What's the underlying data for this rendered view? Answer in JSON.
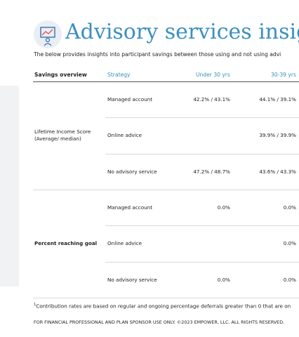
{
  "header": {
    "title": "Advisory services insigh",
    "subtitle": "The below provides insights into participant savings between those using and not using advi"
  },
  "table": {
    "columns": [
      "Savings overview",
      "Strategy",
      "Under 30 yrs",
      "30-39 yrs"
    ],
    "groups": [
      {
        "label": "Lifetime Income Score",
        "sublabel": "(Average/ median)",
        "rows": [
          {
            "strategy": "Managed account",
            "under30": "42.2% / 43.1%",
            "age30_39": "44.1% / 39.1%"
          },
          {
            "strategy": "Online advice",
            "age30_39": "39.9% / 39.9%"
          },
          {
            "strategy": "No advisory service",
            "under30": "47.2% / 48.7%",
            "age30_39": "43.6% / 43.3%"
          }
        ]
      },
      {
        "label": "Percent reaching goal",
        "rows": [
          {
            "strategy": "Managed account",
            "under30": "0.0%",
            "age30_39": "0.0%"
          },
          {
            "strategy": "Online advice",
            "age30_39": "0.0%"
          },
          {
            "strategy": "No advisory service",
            "under30": "0.0%",
            "age30_39": "0.0%"
          }
        ]
      }
    ]
  },
  "footnote": {
    "marker": "1",
    "text": "Contribution rates are based on regular and ongoing percentage deferrals greater than 0 that are on"
  },
  "footer": "FOR FINANCIAL PROFESSIONAL AND PLAN SPONSOR USE ONLY. ©2023 EMPOWER, LLC. ALL RIGHTS RESERVED."
}
